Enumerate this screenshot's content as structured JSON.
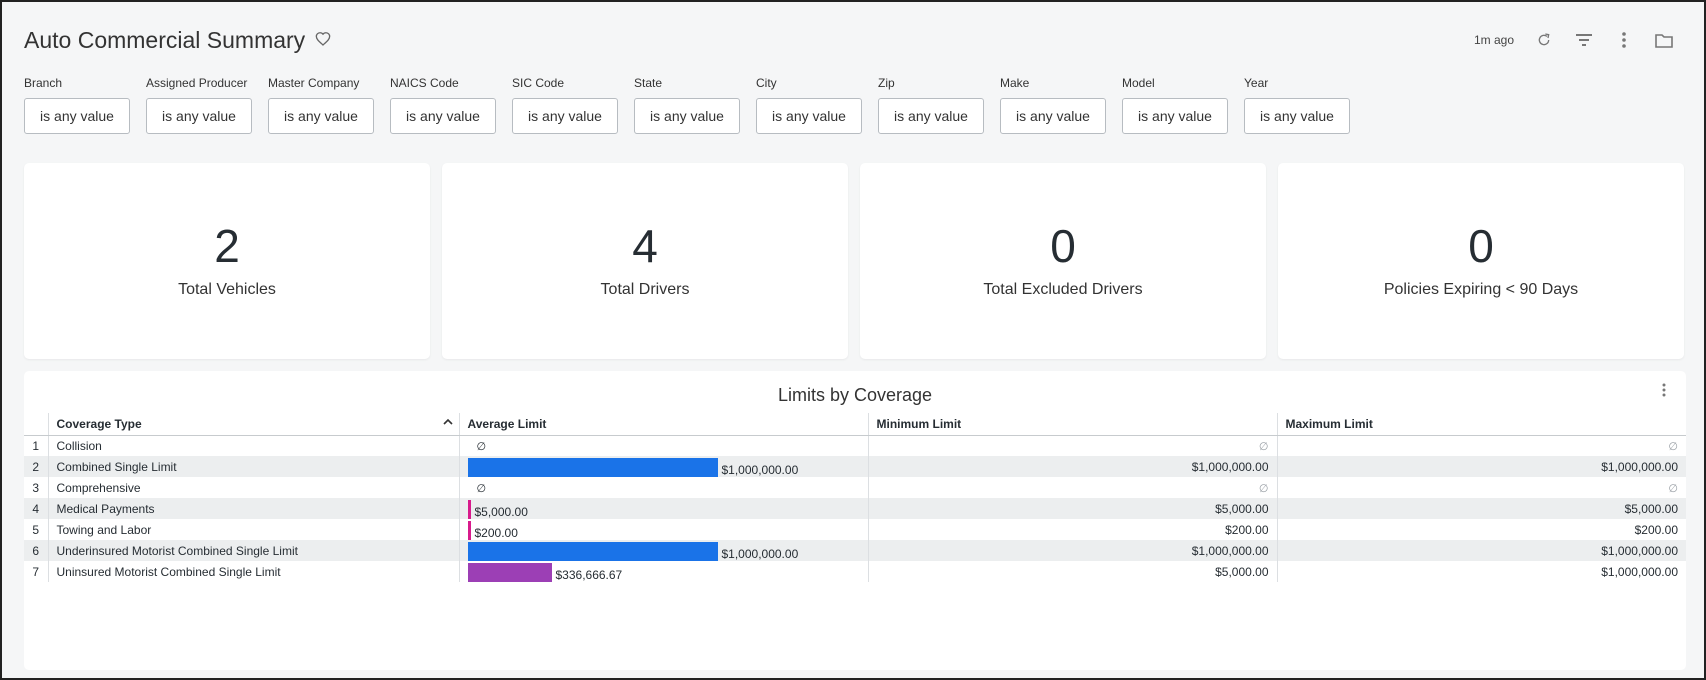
{
  "header": {
    "title": "Auto Commercial Summary",
    "updated": "1m ago"
  },
  "filters": [
    {
      "label": "Branch",
      "value": "is any value"
    },
    {
      "label": "Assigned Producer",
      "value": "is any value"
    },
    {
      "label": "Master Company",
      "value": "is any value"
    },
    {
      "label": "NAICS Code",
      "value": "is any value"
    },
    {
      "label": "SIC Code",
      "value": "is any value"
    },
    {
      "label": "State",
      "value": "is any value"
    },
    {
      "label": "City",
      "value": "is any value"
    },
    {
      "label": "Zip",
      "value": "is any value"
    },
    {
      "label": "Make",
      "value": "is any value"
    },
    {
      "label": "Model",
      "value": "is any value"
    },
    {
      "label": "Year",
      "value": "is any value"
    }
  ],
  "tiles": [
    {
      "value": "2",
      "label": "Total Vehicles"
    },
    {
      "value": "4",
      "label": "Total Drivers"
    },
    {
      "value": "0",
      "label": "Total Excluded Drivers"
    },
    {
      "value": "0",
      "label": "Policies Expiring < 90 Days"
    }
  ],
  "table": {
    "title": "Limits by Coverage",
    "columns": [
      "Coverage Type",
      "Average Limit",
      "Minimum Limit",
      "Maximum Limit"
    ],
    "null_symbol": "∅",
    "rows": [
      {
        "idx": "1",
        "coverage": "Collision",
        "avg": "∅",
        "avg_fraction": 0,
        "bar_color": "",
        "min": "∅",
        "max": "∅"
      },
      {
        "idx": "2",
        "coverage": "Combined Single Limit",
        "avg": "$1,000,000.00",
        "avg_fraction": 1.0,
        "bar_color": "#1a73e8",
        "min": "$1,000,000.00",
        "max": "$1,000,000.00"
      },
      {
        "idx": "3",
        "coverage": "Comprehensive",
        "avg": "∅",
        "avg_fraction": 0,
        "bar_color": "",
        "min": "∅",
        "max": "∅"
      },
      {
        "idx": "4",
        "coverage": "Medical Payments",
        "avg": "$5,000.00",
        "avg_fraction": 0.005,
        "bar_color": "#d81b8c",
        "min": "$5,000.00",
        "max": "$5,000.00"
      },
      {
        "idx": "5",
        "coverage": "Towing and Labor",
        "avg": "$200.00",
        "avg_fraction": 0.0002,
        "bar_color": "#d81b8c",
        "min": "$200.00",
        "max": "$200.00"
      },
      {
        "idx": "6",
        "coverage": "Underinsured Motorist Combined Single Limit",
        "avg": "$1,000,000.00",
        "avg_fraction": 1.0,
        "bar_color": "#1a73e8",
        "min": "$1,000,000.00",
        "max": "$1,000,000.00"
      },
      {
        "idx": "7",
        "coverage": "Uninsured Motorist Combined Single Limit",
        "avg": "$336,666.67",
        "avg_fraction": 0.3367,
        "bar_color": "#9c3fb5",
        "min": "$5,000.00",
        "max": "$1,000,000.00"
      }
    ]
  }
}
